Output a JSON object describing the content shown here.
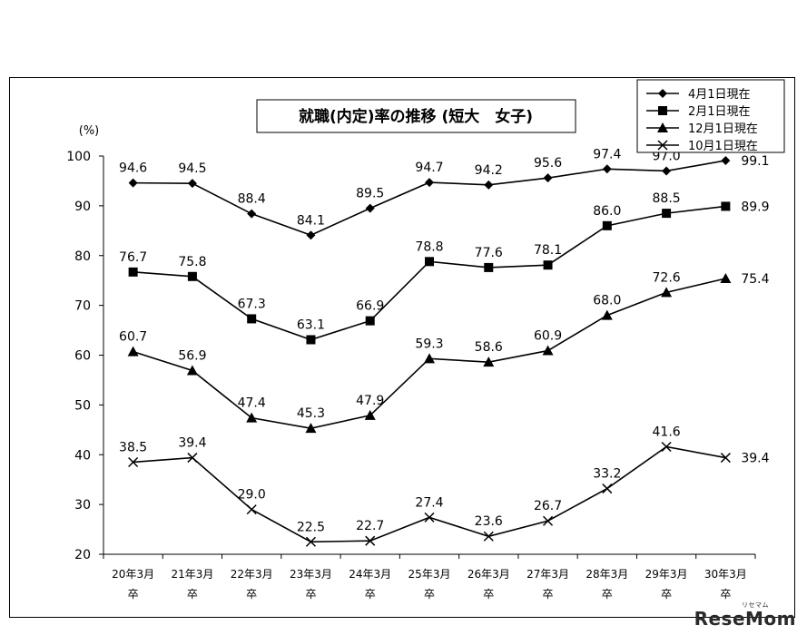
{
  "chart_data": {
    "type": "line",
    "title": "就職(内定)率の推移 (短大　女子)",
    "ylabel": "(%)",
    "ylim": [
      20,
      100
    ],
    "yticks": [
      20,
      30,
      40,
      50,
      60,
      70,
      80,
      90,
      100
    ],
    "categories": [
      [
        "20年3月",
        "卒"
      ],
      [
        "21年3月",
        "卒"
      ],
      [
        "22年3月",
        "卒"
      ],
      [
        "23年3月",
        "卒"
      ],
      [
        "24年3月",
        "卒"
      ],
      [
        "25年3月",
        "卒"
      ],
      [
        "26年3月",
        "卒"
      ],
      [
        "27年3月",
        "卒"
      ],
      [
        "28年3月",
        "卒"
      ],
      [
        "29年3月",
        "卒"
      ],
      [
        "30年3月",
        "卒"
      ]
    ],
    "legend_position": "top-right",
    "series": [
      {
        "name": "4月1日現在",
        "marker": "diamond",
        "values": [
          94.6,
          94.5,
          88.4,
          84.1,
          89.5,
          94.7,
          94.2,
          95.6,
          97.4,
          97.0,
          99.1
        ],
        "labels": [
          "94.6",
          "94.5",
          "88.4",
          "84.1",
          "89.5",
          "94.7",
          "94.2",
          "95.6",
          "97.4",
          "97.0",
          "99.1"
        ]
      },
      {
        "name": "2月1日現在",
        "marker": "square",
        "values": [
          76.7,
          75.8,
          67.3,
          63.1,
          66.9,
          78.8,
          77.6,
          78.1,
          86.0,
          88.5,
          89.9
        ],
        "labels": [
          "76.7",
          "75.8",
          "67.3",
          "63.1",
          "66.9",
          "78.8",
          "77.6",
          "78.1",
          "86.0",
          "88.5",
          "89.9"
        ]
      },
      {
        "name": "12月1日現在",
        "marker": "triangle",
        "values": [
          60.7,
          56.9,
          47.4,
          45.3,
          47.9,
          59.3,
          58.6,
          60.9,
          68.0,
          72.6,
          75.4
        ],
        "labels": [
          "60.7",
          "56.9",
          "47.4",
          "45.3",
          "47.9",
          "59.3",
          "58.6",
          "60.9",
          "68.0",
          "72.6",
          "75.4"
        ]
      },
      {
        "name": "10月1日現在",
        "marker": "x",
        "values": [
          38.5,
          39.4,
          29.0,
          22.5,
          22.7,
          27.4,
          23.6,
          26.7,
          33.2,
          41.6,
          39.4
        ],
        "labels": [
          "38.5",
          "39.4",
          "29.0",
          "22.5",
          "22.7",
          "27.4",
          "23.6",
          "26.7",
          "33.2",
          "41.6",
          "39.4"
        ]
      }
    ]
  },
  "watermark": {
    "text": "ReseMom",
    "sub": "リセマム"
  }
}
